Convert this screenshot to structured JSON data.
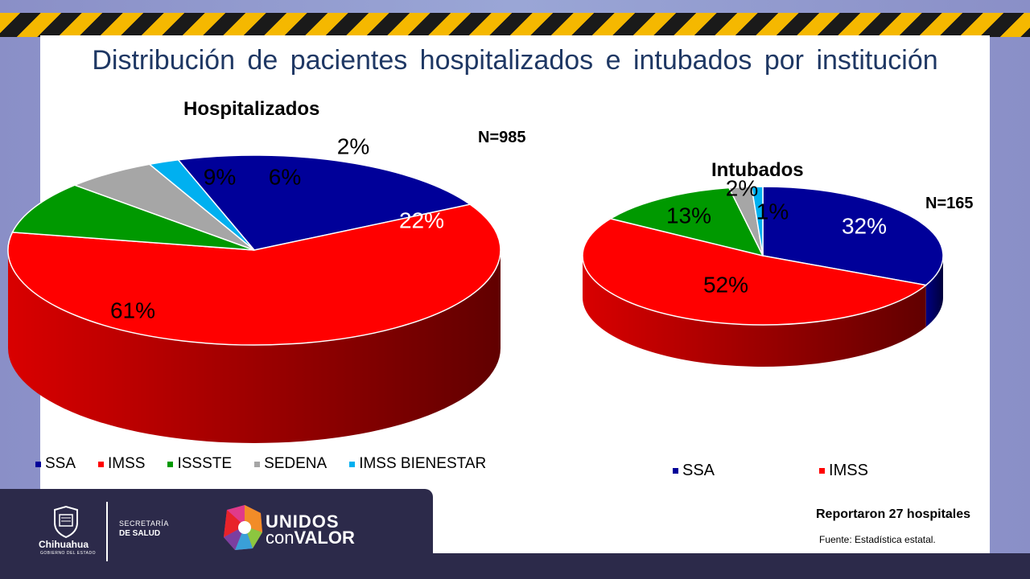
{
  "title": "Distribución de pacientes hospitalizados e intubados por institución",
  "chart_data": [
    {
      "type": "pie",
      "title": "Hospitalizados",
      "n_label": "N=985",
      "categories": [
        "SSA",
        "IMSS",
        "ISSSTE",
        "SEDENA",
        "IMSS BIENESTAR"
      ],
      "values": [
        22,
        61,
        9,
        6,
        2
      ],
      "labels": [
        "22%",
        "61%",
        "9%",
        "6%",
        "2%"
      ],
      "colors": [
        "#000099",
        "#ff0000",
        "#009900",
        "#a6a6a6",
        "#00b0f0"
      ],
      "legend": [
        "SSA",
        "IMSS",
        "ISSSTE",
        "SEDENA",
        "IMSS BIENESTAR"
      ],
      "legend_position": "bottom"
    },
    {
      "type": "pie",
      "title": "Intubados",
      "n_label": "N=165",
      "categories": [
        "SSA",
        "IMSS",
        "ISSSTE",
        "SEDENA",
        "IMSS BIENESTAR"
      ],
      "values": [
        32,
        52,
        13,
        2,
        1
      ],
      "labels": [
        "32%",
        "52%",
        "13%",
        "2%",
        "1%"
      ],
      "colors": [
        "#000099",
        "#ff0000",
        "#009900",
        "#a6a6a6",
        "#00b0f0"
      ],
      "legend": [
        "SSA",
        "IMSS"
      ],
      "legend_position": "bottom"
    }
  ],
  "footer": {
    "reported": "Reportaron 27 hospitales",
    "source": "Fuente: Estadística estatal.",
    "logo_state": "Chihuahua",
    "logo_state_sub": "GOBIERNO DEL ESTADO",
    "secretaria_line1": "SECRETARÍA",
    "secretaria_line2": "DE SALUD",
    "brand_line1": "UNIDOS",
    "brand_line2a": "con",
    "brand_line2b": "VALOR"
  }
}
